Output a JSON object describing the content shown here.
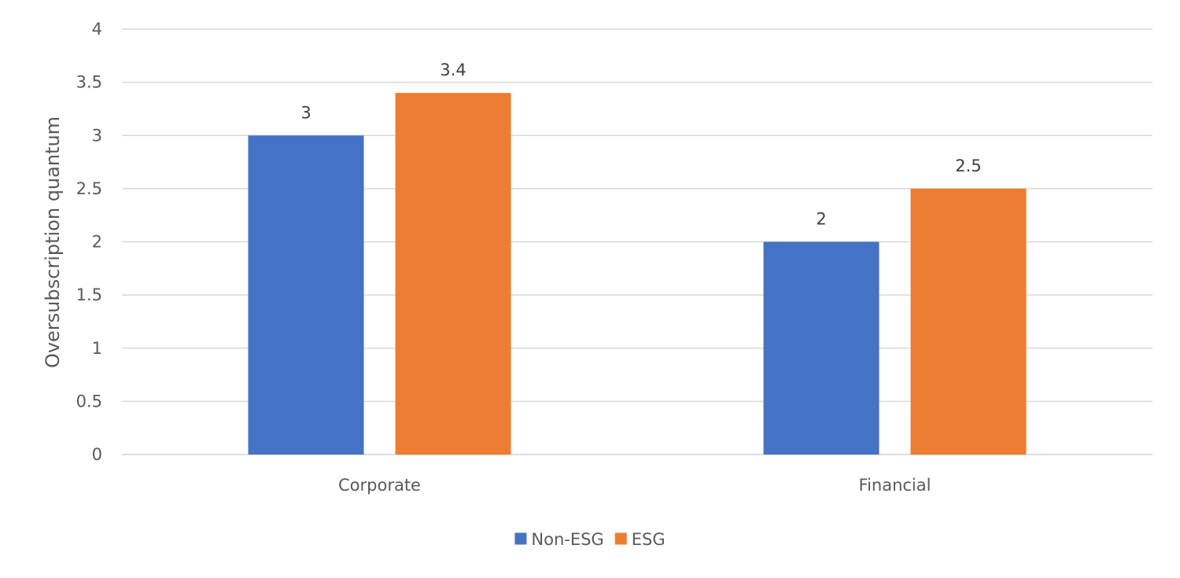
{
  "chart_data": {
    "type": "bar",
    "title": "",
    "xlabel": "",
    "ylabel": "Oversubscription quantum",
    "categories": [
      "Corporate",
      "Financial"
    ],
    "series": [
      {
        "name": "Non-ESG",
        "values": [
          3,
          2
        ],
        "color": "#4472C4"
      },
      {
        "name": "ESG",
        "values": [
          3.4,
          2.5
        ],
        "color": "#ED7D31"
      }
    ],
    "ylim": [
      0,
      4
    ],
    "yticks": [
      "0",
      "0.5",
      "1",
      "1.5",
      "2",
      "2.5",
      "3",
      "3.5",
      "4"
    ],
    "data_labels": [
      [
        "3",
        "2"
      ],
      [
        "3.4",
        "2.5"
      ]
    ],
    "grid": true,
    "legend": "bottom-center",
    "gridline_color": "#D9D9D9"
  }
}
